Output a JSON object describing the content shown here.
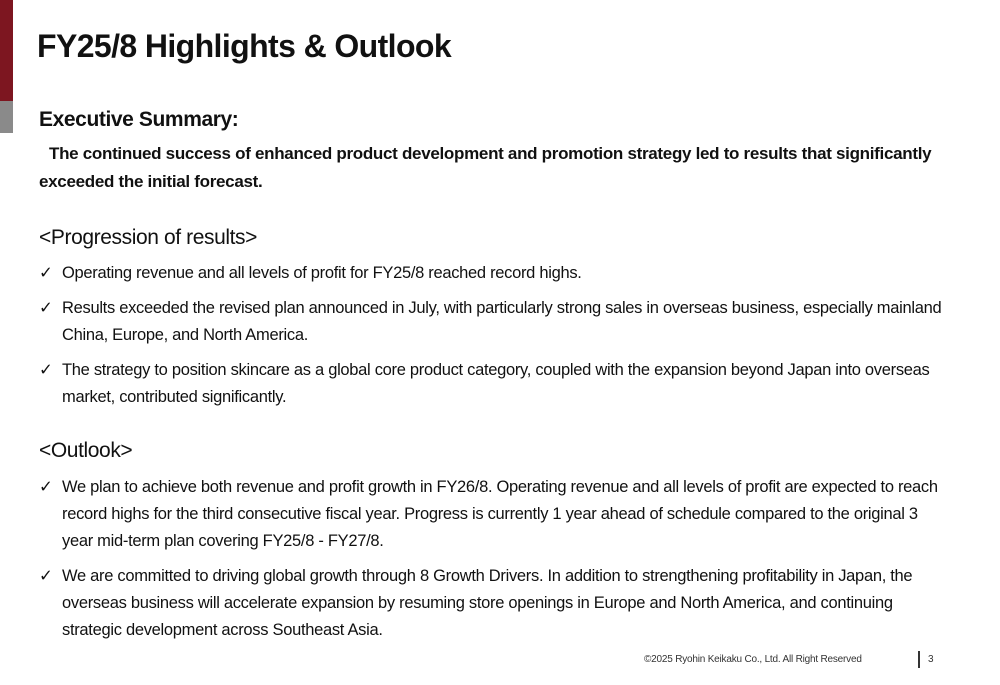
{
  "colors": {
    "accent_red": "#7d1620",
    "accent_grey": "#8a8a8a"
  },
  "title": "FY25/8 Highlights & Outlook",
  "executive_summary": {
    "heading": "Executive Summary:",
    "body": "The continued success of enhanced product development and promotion strategy led to results that significantly exceeded the initial forecast."
  },
  "progression": {
    "heading": "<Progression of results>",
    "items": [
      "Operating revenue and all levels of profit for FY25/8 reached record highs.",
      "Results exceeded the revised plan announced in July, with particularly strong sales in overseas business, especially mainland China, Europe, and North America.",
      "The strategy to position skincare as a global core product category, coupled with the expansion beyond Japan into overseas market, contributed significantly."
    ]
  },
  "outlook": {
    "heading": "<Outlook>",
    "items": [
      "We plan to achieve both revenue and profit growth in FY26/8. Operating revenue and all levels of profit are expected to reach record highs for the third consecutive fiscal year. Progress is currently 1 year ahead of schedule compared to the original 3 year mid-term plan covering FY25/8 - FY27/8.",
      "We are committed to driving global growth through 8 Growth Drivers. In addition to strengthening profitability in Japan, the overseas business will accelerate expansion by resuming store openings in Europe and North America, and continuing strategic development across Southeast Asia."
    ]
  },
  "check_glyph": "✓",
  "footer": {
    "copyright": "©2025 Ryohin Keikaku Co., Ltd. All Right Reserved",
    "page_number": "3"
  }
}
